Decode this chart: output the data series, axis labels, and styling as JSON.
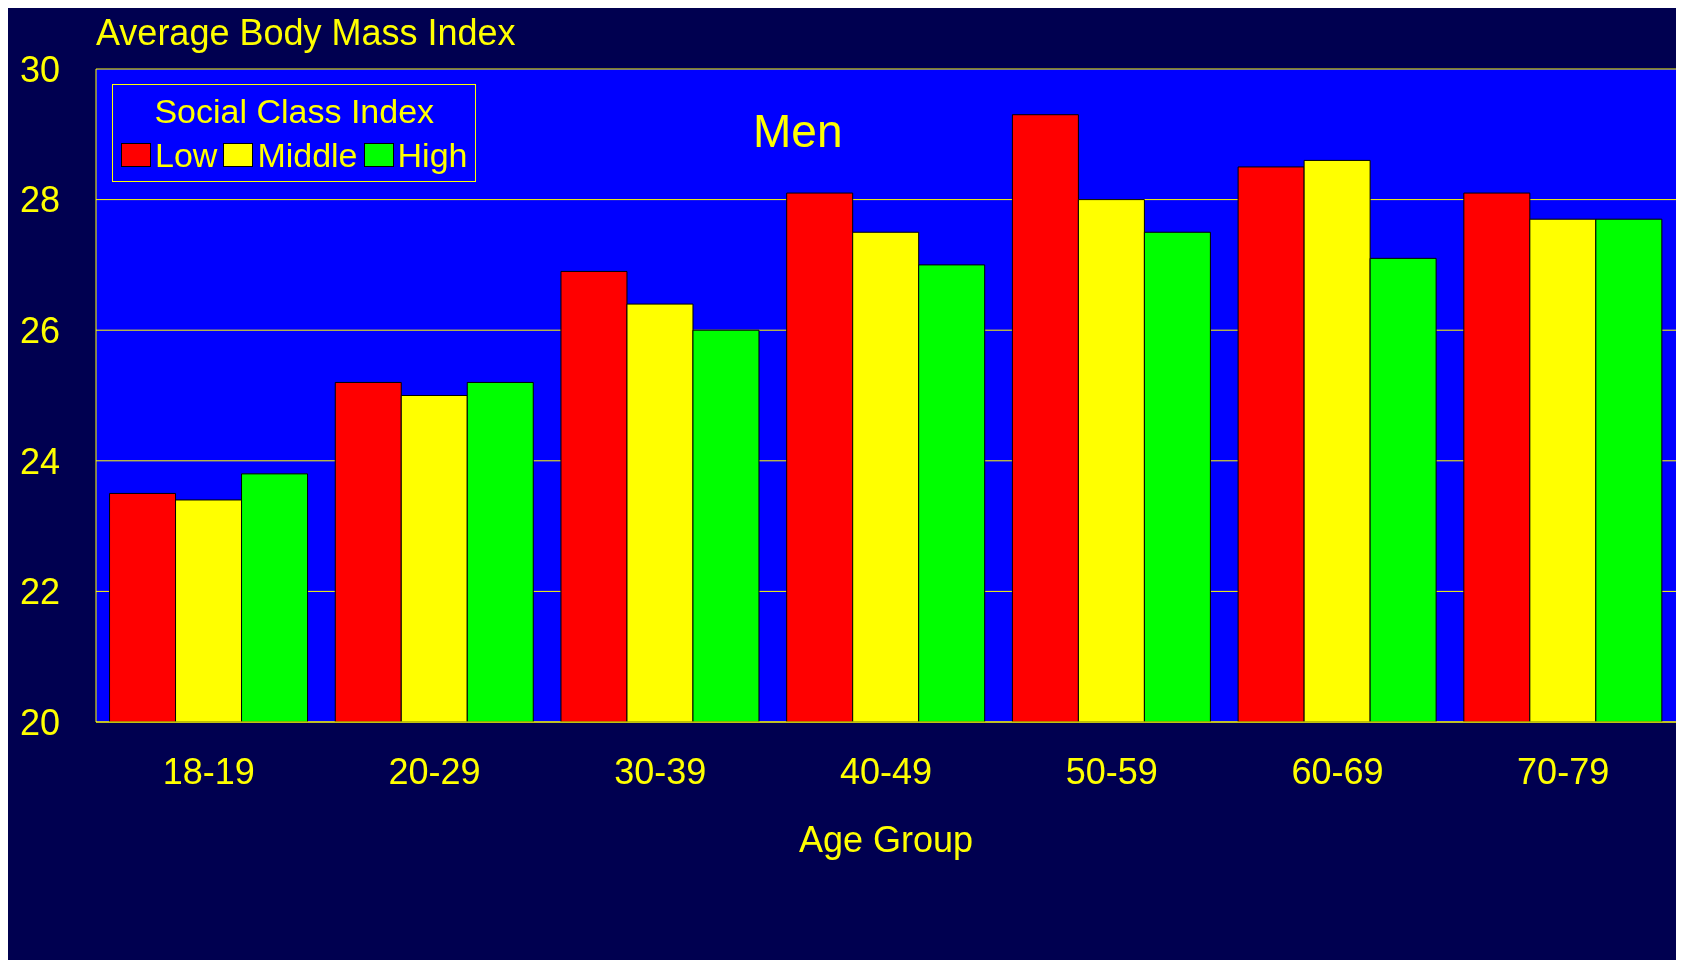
{
  "chart_data": {
    "type": "bar",
    "title": "Average Body Mass Index",
    "xlabel": "Age Group",
    "legend_title": "Social Class Index",
    "annotations": [
      "Men"
    ],
    "categories": [
      "18-19",
      "20-29",
      "30-39",
      "40-49",
      "50-59",
      "60-69",
      "70-79"
    ],
    "series": [
      {
        "name": "Low",
        "color": "#ff0000",
        "values": [
          23.5,
          25.2,
          26.9,
          28.1,
          29.3,
          28.5,
          28.1
        ]
      },
      {
        "name": "Middle",
        "color": "#ffff00",
        "values": [
          23.4,
          25.0,
          26.4,
          27.5,
          28.0,
          28.6,
          27.7
        ]
      },
      {
        "name": "High",
        "color": "#00ff00",
        "values": [
          23.8,
          25.2,
          26.0,
          27.0,
          27.5,
          27.1,
          27.7
        ]
      }
    ],
    "ylim": [
      20,
      30
    ],
    "yticks": [
      20,
      22,
      24,
      26,
      28,
      30
    ],
    "grid": "y",
    "legend": "top left"
  }
}
